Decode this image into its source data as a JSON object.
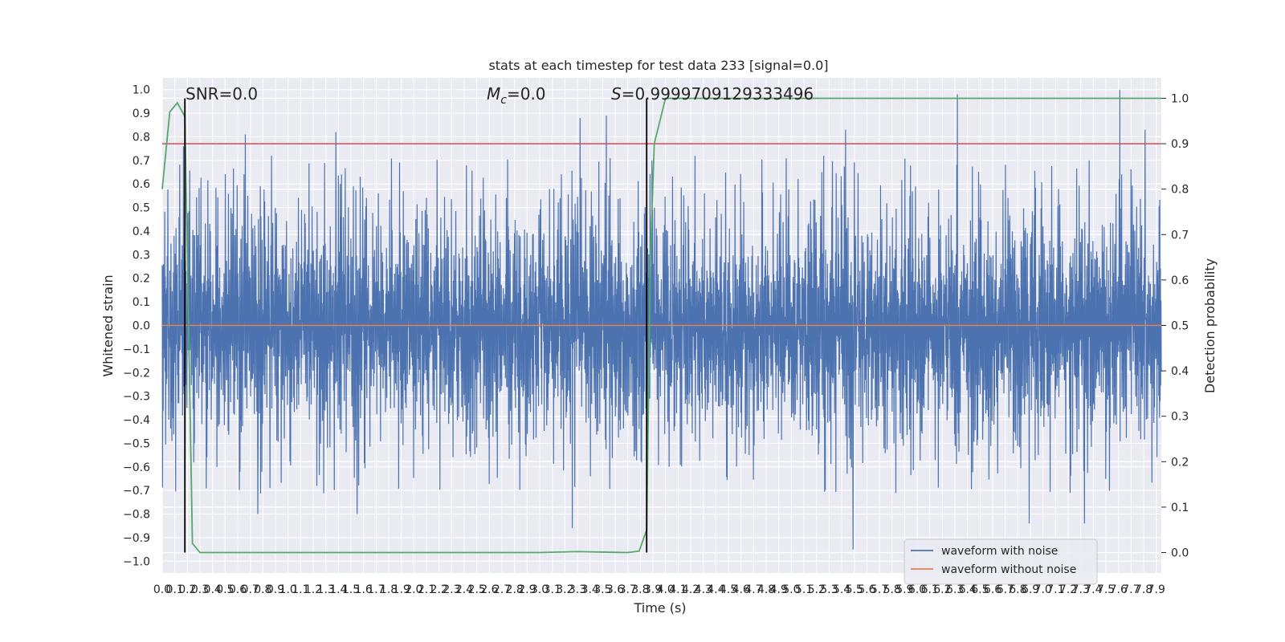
{
  "chart_data": {
    "type": "line",
    "title": "stats at each timestep for test data 233 [signal=0.0]",
    "xlabel": "Time (s)",
    "ylabel": "Whitened strain",
    "y2label": "Detection probability",
    "xlim": [
      0,
      7.94
    ],
    "ylim": [
      -1.05,
      1.05
    ],
    "y2lim": [
      -0.045,
      1.045
    ],
    "x_ticks": [
      0.0,
      0.1,
      0.2,
      0.3,
      0.4,
      0.5,
      0.6,
      0.7,
      0.8,
      0.9,
      1.0,
      1.1,
      1.2,
      1.3,
      1.4,
      1.5,
      1.6,
      1.7,
      1.8,
      1.9,
      2.0,
      2.1,
      2.2,
      2.3,
      2.4,
      2.5,
      2.6,
      2.7,
      2.8,
      2.9,
      3.0,
      3.1,
      3.2,
      3.3,
      3.4,
      3.5,
      3.6,
      3.7,
      3.8,
      3.9,
      4.0,
      4.1,
      4.2,
      4.3,
      4.4,
      4.5,
      4.6,
      4.7,
      4.8,
      4.9,
      5.0,
      5.1,
      5.2,
      5.3,
      5.4,
      5.5,
      5.6,
      5.7,
      5.8,
      5.9,
      6.0,
      6.1,
      6.2,
      6.3,
      6.4,
      6.5,
      6.6,
      6.7,
      6.8,
      6.9,
      7.0,
      7.1,
      7.2,
      7.3,
      7.4,
      7.5,
      7.6,
      7.7,
      7.8,
      7.9
    ],
    "y_ticks": [
      1.0,
      0.9,
      0.8,
      0.7,
      0.6,
      0.5,
      0.4,
      0.3,
      0.2,
      0.1,
      0.0,
      -0.1,
      -0.2,
      -0.3,
      -0.4,
      -0.5,
      -0.6,
      -0.7,
      -0.8,
      -0.9,
      -1.0
    ],
    "y2_ticks": [
      0.0,
      0.1,
      0.2,
      0.3,
      0.4,
      0.5,
      0.6,
      0.7,
      0.8,
      0.9,
      1.0
    ],
    "grid": true,
    "legend_position": "lower-right",
    "annotations": {
      "snr": "SNR=0.0",
      "mc_symbol": "M",
      "mc_sub": "c",
      "mc_value": "=0.0",
      "s_symbol": "S",
      "s_value": "=0.9999709129333496"
    },
    "series": [
      {
        "name": "waveform with noise",
        "color": "#4c72b0",
        "note": "dense noisy strain, amplitude mostly within about ±0.6 with spikes near ±1.0",
        "spikes": [
          {
            "x": 0.17,
            "y": 0.76
          },
          {
            "x": 0.18,
            "y": -0.73
          },
          {
            "x": 0.66,
            "y": 0.81
          },
          {
            "x": 0.76,
            "y": -0.8
          },
          {
            "x": 1.38,
            "y": 0.82
          },
          {
            "x": 1.55,
            "y": -0.8
          },
          {
            "x": 3.32,
            "y": 0.88
          },
          {
            "x": 3.26,
            "y": -0.86
          },
          {
            "x": 3.53,
            "y": 0.89
          },
          {
            "x": 5.43,
            "y": 0.83
          },
          {
            "x": 5.49,
            "y": -0.95
          },
          {
            "x": 6.32,
            "y": 0.98
          },
          {
            "x": 6.89,
            "y": -0.84
          },
          {
            "x": 7.33,
            "y": -0.84
          },
          {
            "x": 7.61,
            "y": 1.0
          },
          {
            "x": 7.81,
            "y": 0.83
          }
        ]
      },
      {
        "name": "waveform without noise",
        "color": "#dd8452",
        "x": [
          0.0,
          7.94
        ],
        "y": [
          0.0,
          0.0
        ]
      },
      {
        "name": "detection probability",
        "axis": "right",
        "color": "#55a868",
        "x": [
          0.0,
          0.06,
          0.12,
          0.18,
          0.24,
          0.3,
          0.5,
          1.0,
          2.0,
          3.0,
          3.3,
          3.5,
          3.7,
          3.79,
          3.85,
          3.88,
          3.91,
          4.0,
          4.05,
          5.0,
          6.0,
          7.0,
          7.94
        ],
        "y": [
          0.8,
          0.97,
          0.99,
          0.96,
          0.02,
          0.0,
          0.0,
          0.0,
          0.0,
          0.0,
          0.002,
          0.001,
          0.0,
          0.003,
          0.05,
          0.65,
          0.9,
          1.0,
          1.0,
          1.0,
          1.0,
          1.0,
          1.0
        ]
      }
    ],
    "threshold": {
      "axis": "right",
      "y": 0.9,
      "color": "#c44e52"
    },
    "vlines": [
      {
        "x": 0.18,
        "color": "#000000"
      },
      {
        "x": 3.85,
        "color": "#000000"
      }
    ]
  }
}
